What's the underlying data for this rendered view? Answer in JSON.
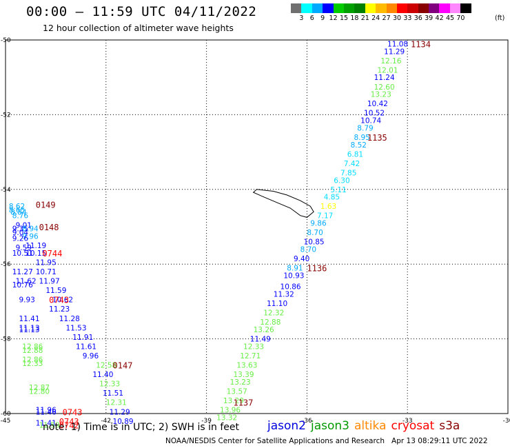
{
  "title": "00:00 — 11:59 UTC 04/11/2022",
  "subtitle": "12 hour collection of altimeter wave heights",
  "legend": {
    "colors": [
      "#707070",
      "#00ffff",
      "#00aaff",
      "#0000ff",
      "#00cc00",
      "#00a000",
      "#008000",
      "#ffff00",
      "#ffbb00",
      "#ff8800",
      "#ff0000",
      "#cc0000",
      "#880000",
      "#800080",
      "#ff00ff",
      "#ff88ff",
      "#000000"
    ],
    "labels": [
      "3",
      "6",
      "9",
      "12",
      "15",
      "18",
      "21",
      "24",
      "27",
      "30",
      "33",
      "36",
      "39",
      "42",
      "45",
      "70"
    ],
    "unit": "(ft)"
  },
  "note": "note: 1) Time is in UTC; 2) SWH is in feet",
  "credit": "NOAA/NESDIS Center for Satellite Applications and Research   Apr 13 08:29:11 UTC 2022",
  "satellites": [
    {
      "name": "jason2",
      "color": "#0000dd"
    },
    {
      "name": "jason3",
      "color": "#009900"
    },
    {
      "name": "altika",
      "color": "#ff8800"
    },
    {
      "name": "cryosat",
      "color": "#ff0000"
    },
    {
      "name": "s3a",
      "color": "#880000"
    }
  ],
  "chart_data": {
    "type": "scatter",
    "xlim": [
      -45,
      -30
    ],
    "ylim": [
      -60,
      -50
    ],
    "xticks": [
      "-45",
      "-42",
      "-39",
      "-36",
      "-33",
      "-30"
    ],
    "yticks": [
      "-50",
      "-52",
      "-54",
      "-56",
      "-58",
      "-60"
    ],
    "grid": true,
    "tracks": [
      {
        "time": "1134",
        "time_color": "#880000",
        "label_at": [
          -32.9,
          -50.1
        ],
        "points": [
          {
            "lon": -33.6,
            "lat": -50.1,
            "v": "11.08",
            "c": "#0000ff"
          },
          {
            "lon": -33.7,
            "lat": -50.3,
            "v": "11.29",
            "c": "#0000ff"
          },
          {
            "lon": -33.8,
            "lat": -50.55,
            "v": "12.16",
            "c": "#66ee44"
          },
          {
            "lon": -33.9,
            "lat": -50.8,
            "v": "12.01",
            "c": "#66ee44"
          },
          {
            "lon": -34.0,
            "lat": -51.0,
            "v": "11.24",
            "c": "#0000ff"
          },
          {
            "lon": -34.0,
            "lat": -51.25,
            "v": "12.60",
            "c": "#66ee44"
          },
          {
            "lon": -34.1,
            "lat": -51.45,
            "v": "13.23",
            "c": "#66ee44"
          },
          {
            "lon": -34.2,
            "lat": -51.7,
            "v": "10.42",
            "c": "#0000ff"
          },
          {
            "lon": -34.3,
            "lat": -51.95,
            "v": "10.52",
            "c": "#0000ff"
          },
          {
            "lon": -34.4,
            "lat": -52.15,
            "v": "10.74",
            "c": "#0000ff"
          },
          {
            "lon": -34.5,
            "lat": -52.35,
            "v": "8.79",
            "c": "#00aaff"
          },
          {
            "lon": -34.6,
            "lat": -52.6,
            "v": "8.95",
            "c": "#00aaff"
          },
          {
            "lon": -34.7,
            "lat": -52.8,
            "v": "8.52",
            "c": "#00aaff"
          }
        ]
      },
      {
        "time": "1135",
        "time_color": "#880000",
        "label_at": [
          -34.2,
          -52.6
        ],
        "points": [
          {
            "lon": -34.8,
            "lat": -53.05,
            "v": "6.81",
            "c": "#00ddff"
          },
          {
            "lon": -34.9,
            "lat": -53.3,
            "v": "7.42",
            "c": "#00ddff"
          },
          {
            "lon": -35.0,
            "lat": -53.55,
            "v": "7.85",
            "c": "#00ddff"
          },
          {
            "lon": -35.2,
            "lat": -53.75,
            "v": "6.30",
            "c": "#00ddff"
          },
          {
            "lon": -35.3,
            "lat": -54.0,
            "v": "5.11",
            "c": "#00ddff"
          },
          {
            "lon": -35.5,
            "lat": -54.2,
            "v": "4.85",
            "c": "#00ddff"
          },
          {
            "lon": -35.6,
            "lat": -54.45,
            "v": "1.63",
            "c": "#ffff00"
          },
          {
            "lon": -35.7,
            "lat": -54.7,
            "v": "7.17",
            "c": "#00ddff"
          },
          {
            "lon": -35.9,
            "lat": -54.9,
            "v": "9.86",
            "c": "#00aaff"
          },
          {
            "lon": -36.0,
            "lat": -55.15,
            "v": "8.70",
            "c": "#00aaff"
          },
          {
            "lon": -36.1,
            "lat": -55.4,
            "v": "10.85",
            "c": "#0000ff"
          },
          {
            "lon": -36.2,
            "lat": -55.6,
            "v": "8.70",
            "c": "#00aaff"
          },
          {
            "lon": -36.4,
            "lat": -55.85,
            "v": "9.40",
            "c": "#0000ff"
          },
          {
            "lon": -36.6,
            "lat": -56.1,
            "v": "8.91",
            "c": "#00aaff"
          }
        ]
      },
      {
        "time": "1136",
        "time_color": "#880000",
        "label_at": [
          -36.0,
          -56.1
        ],
        "points": [
          {
            "lon": -36.7,
            "lat": -56.3,
            "v": "10.93",
            "c": "#0000ff"
          },
          {
            "lon": -36.8,
            "lat": -56.6,
            "v": "10.86",
            "c": "#0000ff"
          },
          {
            "lon": -37.0,
            "lat": -56.8,
            "v": "11.32",
            "c": "#0000ff"
          },
          {
            "lon": -37.2,
            "lat": -57.05,
            "v": "11.10",
            "c": "#0000ff"
          },
          {
            "lon": -37.3,
            "lat": -57.3,
            "v": "12.32",
            "c": "#66ee44"
          },
          {
            "lon": -37.4,
            "lat": -57.55,
            "v": "12.88",
            "c": "#66ee44"
          },
          {
            "lon": -37.6,
            "lat": -57.75,
            "v": "13.26",
            "c": "#66ee44"
          },
          {
            "lon": -37.7,
            "lat": -58.0,
            "v": "11.49",
            "c": "#0000ff"
          },
          {
            "lon": -37.9,
            "lat": -58.2,
            "v": "12.33",
            "c": "#66ee44"
          },
          {
            "lon": -38.0,
            "lat": -58.45,
            "v": "12.71",
            "c": "#66ee44"
          },
          {
            "lon": -38.1,
            "lat": -58.7,
            "v": "13.63",
            "c": "#66ee44"
          },
          {
            "lon": -38.2,
            "lat": -58.95,
            "v": "13.39",
            "c": "#66ee44"
          },
          {
            "lon": -38.3,
            "lat": -59.15,
            "v": "13.23",
            "c": "#66ee44"
          },
          {
            "lon": -38.4,
            "lat": -59.4,
            "v": "13.57",
            "c": "#66ee44"
          },
          {
            "lon": -38.5,
            "lat": -59.65,
            "v": "13.29",
            "c": "#66ee44"
          },
          {
            "lon": -38.6,
            "lat": -59.9,
            "v": "13.96",
            "c": "#66ee44"
          },
          {
            "lon": -38.7,
            "lat": -60.1,
            "v": "13.32",
            "c": "#66ee44"
          }
        ]
      },
      {
        "time": "1137",
        "time_color": "#880000",
        "label_at": [
          -38.2,
          -59.7
        ],
        "points": []
      },
      {
        "time": "0149",
        "time_color": "#880000",
        "label_at": [
          -44.1,
          -54.4
        ],
        "points": [
          {
            "lon": -44.9,
            "lat": -54.45,
            "v": "8.62",
            "c": "#00aaff"
          },
          {
            "lon": -44.9,
            "lat": -54.55,
            "v": "8.65",
            "c": "#00aaff"
          },
          {
            "lon": -44.85,
            "lat": -54.6,
            "v": "8.84",
            "c": "#00aaff"
          },
          {
            "lon": -44.8,
            "lat": -54.7,
            "v": "8.76",
            "c": "#00aaff"
          },
          {
            "lon": -44.7,
            "lat": -54.95,
            "v": "9.01",
            "c": "#0000ff"
          }
        ]
      },
      {
        "time": "0148",
        "time_color": "#880000",
        "label_at": [
          -44.0,
          -55.0
        ],
        "points": [
          {
            "lon": -44.8,
            "lat": -55.05,
            "v": "9.35",
            "c": "#0000ff"
          },
          {
            "lon": -44.5,
            "lat": -55.05,
            "v": "8.94",
            "c": "#00aaff"
          },
          {
            "lon": -44.8,
            "lat": -55.15,
            "v": "9.04",
            "c": "#0000ff"
          },
          {
            "lon": -44.5,
            "lat": -55.25,
            "v": "9.96",
            "c": "#00aaff"
          },
          {
            "lon": -44.8,
            "lat": -55.3,
            "v": "9.26",
            "c": "#0000ff"
          },
          {
            "lon": -44.4,
            "lat": -55.5,
            "v": "11.19",
            "c": "#0000ff"
          },
          {
            "lon": -44.7,
            "lat": -55.55,
            "v": "9.59",
            "c": "#0000ff"
          },
          {
            "lon": -44.8,
            "lat": -55.7,
            "v": "10.51",
            "c": "#0000ff"
          },
          {
            "lon": -44.4,
            "lat": -55.7,
            "v": "10.15",
            "c": "#0000ff"
          }
        ]
      },
      {
        "time": "0744",
        "time_color": "#ff0000",
        "label_at": [
          -43.9,
          -55.7
        ],
        "points": [
          {
            "lon": -44.1,
            "lat": -55.95,
            "v": "11.95",
            "c": "#0000ff"
          },
          {
            "lon": -44.8,
            "lat": -56.2,
            "v": "11.27",
            "c": "#0000ff"
          },
          {
            "lon": -44.1,
            "lat": -56.2,
            "v": "10.71",
            "c": "#0000ff"
          },
          {
            "lon": -44.7,
            "lat": -56.45,
            "v": "11.62",
            "c": "#0000ff"
          },
          {
            "lon": -44.0,
            "lat": -56.45,
            "v": "11.97",
            "c": "#0000ff"
          },
          {
            "lon": -44.8,
            "lat": -56.55,
            "v": "10.76",
            "c": "#0000ff"
          },
          {
            "lon": -43.8,
            "lat": -56.7,
            "v": "11.59",
            "c": "#0000ff"
          },
          {
            "lon": -44.6,
            "lat": -56.95,
            "v": "9.93",
            "c": "#0000ff"
          },
          {
            "lon": -43.6,
            "lat": -56.95,
            "v": "10.62",
            "c": "#0000ff"
          }
        ]
      },
      {
        "time": "0743",
        "time_color": "#ff0000",
        "label_at": [
          -43.7,
          -56.95
        ],
        "points": [
          {
            "lon": -43.7,
            "lat": -57.2,
            "v": "11.23",
            "c": "#0000ff"
          },
          {
            "lon": -44.6,
            "lat": -57.45,
            "v": "11.41",
            "c": "#0000ff"
          },
          {
            "lon": -43.4,
            "lat": -57.45,
            "v": "11.28",
            "c": "#0000ff"
          },
          {
            "lon": -44.6,
            "lat": -57.7,
            "v": "11.13",
            "c": "#0000ff"
          },
          {
            "lon": -43.2,
            "lat": -57.7,
            "v": "11.53",
            "c": "#0000ff"
          },
          {
            "lon": -44.6,
            "lat": -57.75,
            "v": "11.13",
            "c": "#0000ff"
          },
          {
            "lon": -43.0,
            "lat": -57.95,
            "v": "11.91",
            "c": "#0000ff"
          },
          {
            "lon": -42.9,
            "lat": -58.2,
            "v": "11.61",
            "c": "#0000ff"
          },
          {
            "lon": -44.5,
            "lat": -58.2,
            "v": "12.86",
            "c": "#66ee44"
          },
          {
            "lon": -44.5,
            "lat": -58.3,
            "v": "12.88",
            "c": "#66ee44"
          },
          {
            "lon": -42.7,
            "lat": -58.45,
            "v": "9.96",
            "c": "#0000ff"
          },
          {
            "lon": -44.5,
            "lat": -58.55,
            "v": "12.86",
            "c": "#66ee44"
          },
          {
            "lon": -44.5,
            "lat": -58.65,
            "v": "12.33",
            "c": "#66ee44"
          }
        ]
      },
      {
        "time": "0147",
        "time_color": "#880000",
        "label_at": [
          -41.8,
          -58.7
        ],
        "points": [
          {
            "lon": -42.3,
            "lat": -58.7,
            "v": "12.58",
            "c": "#66ee44"
          },
          {
            "lon": -42.4,
            "lat": -58.95,
            "v": "11.40",
            "c": "#0000ff"
          },
          {
            "lon": -42.2,
            "lat": -59.2,
            "v": "12.33",
            "c": "#66ee44"
          },
          {
            "lon": -44.3,
            "lat": -59.3,
            "v": "12.87",
            "c": "#66ee44"
          },
          {
            "lon": -44.3,
            "lat": -59.4,
            "v": "12.80",
            "c": "#66ee44"
          },
          {
            "lon": -42.1,
            "lat": -59.45,
            "v": "11.51",
            "c": "#0000ff"
          },
          {
            "lon": -42.0,
            "lat": -59.7,
            "v": "12.31",
            "c": "#66ee44"
          },
          {
            "lon": -41.9,
            "lat": -59.95,
            "v": "11.29",
            "c": "#0000ff"
          },
          {
            "lon": -41.8,
            "lat": -60.2,
            "v": "10.89",
            "c": "#0000ff"
          },
          {
            "lon": -44.1,
            "lat": -59.9,
            "v": "11.96",
            "c": "#0000ff"
          },
          {
            "lon": -44.1,
            "lat": -59.95,
            "v": "11.46",
            "c": "#0000ff"
          },
          {
            "lon": -44.1,
            "lat": -60.25,
            "v": "11.41",
            "c": "#0000ff"
          },
          {
            "lon": -44.0,
            "lat": -60.3,
            "v": "11.59",
            "c": "#66ee44"
          }
        ]
      },
      {
        "time": "0743",
        "time_color": "#ff0000",
        "label_at": [
          -43.3,
          -59.95
        ],
        "points": []
      },
      {
        "time": "0743",
        "time_color": "#ff0000",
        "label_at": [
          -43.4,
          -60.2
        ],
        "points": []
      },
      {
        "time": "0742",
        "time_color": "#ff0000",
        "label_at": [
          -43.4,
          -60.3
        ],
        "points": []
      }
    ]
  }
}
